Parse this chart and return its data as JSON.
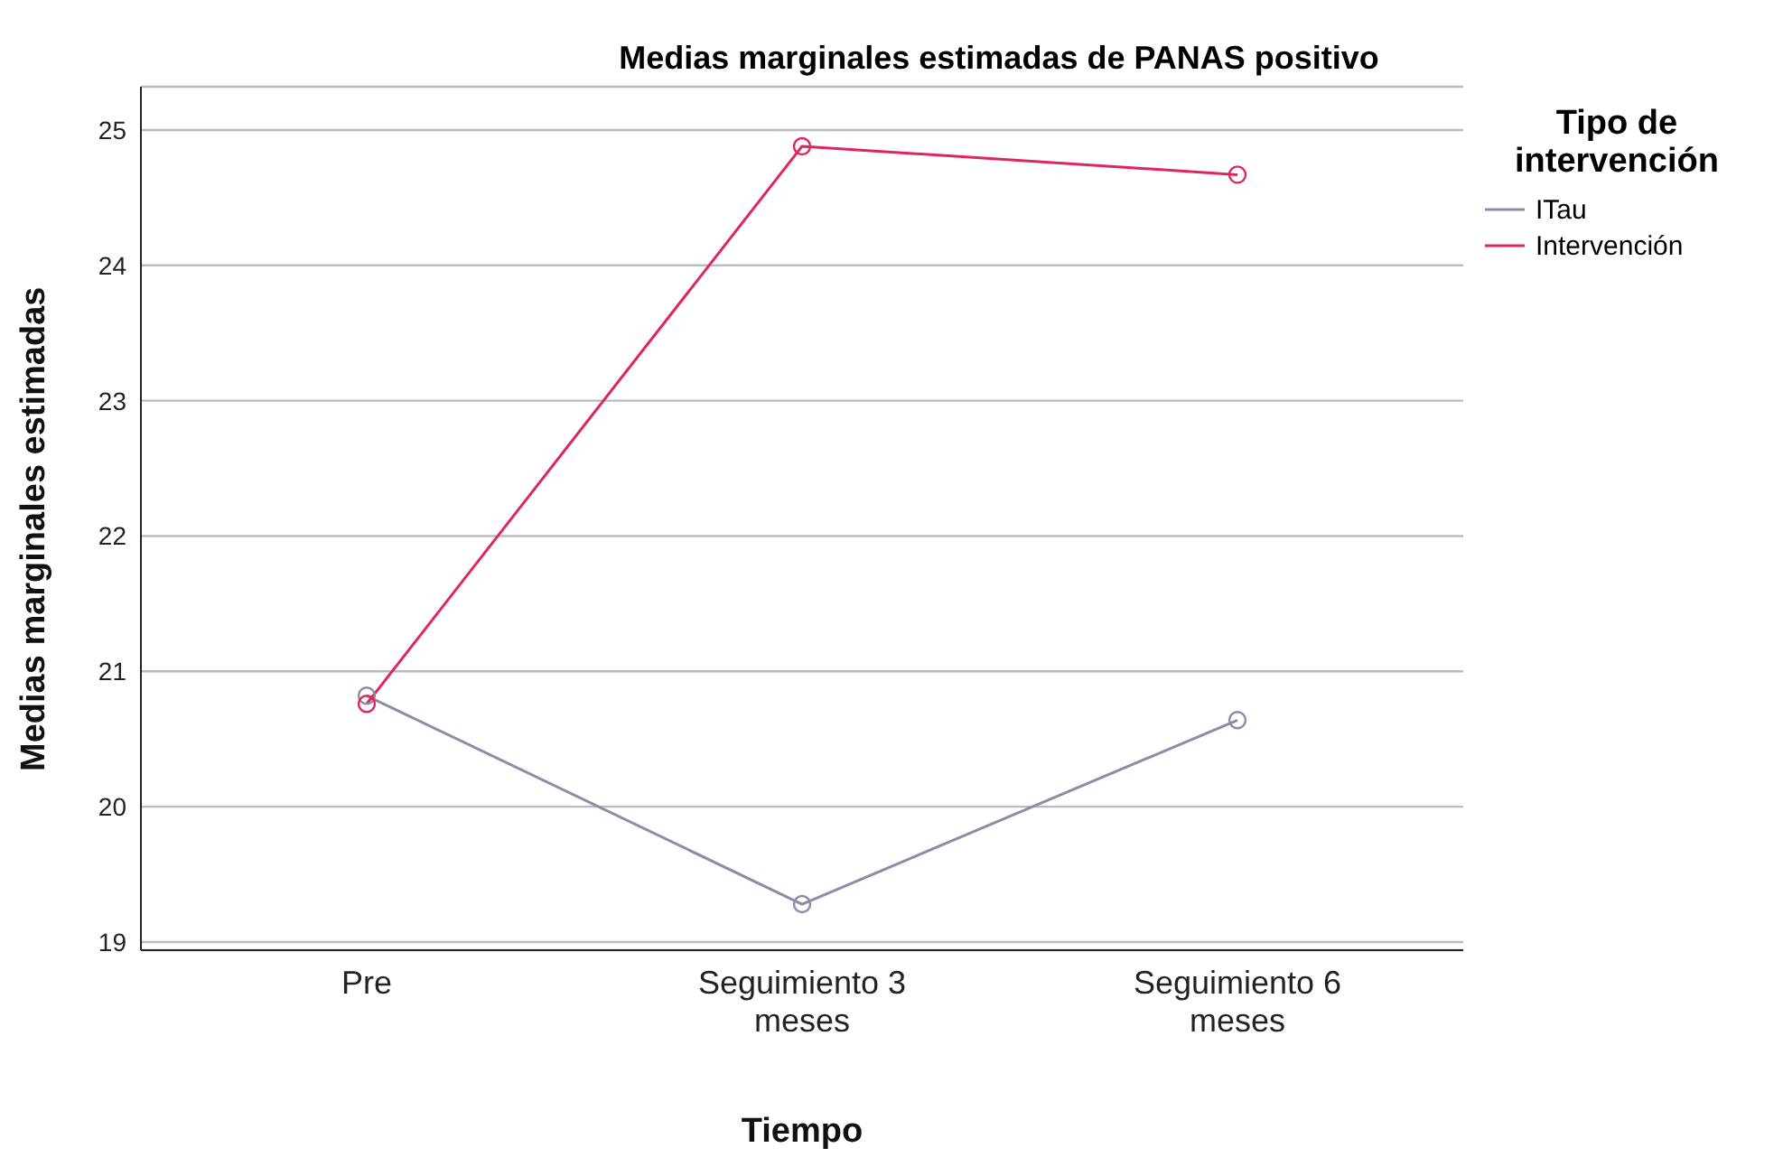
{
  "chart_data": {
    "type": "line",
    "title": "Medias marginales estimadas de PANAS positivo",
    "xlabel": "Tiempo",
    "ylabel": "Medias marginales estimadas",
    "legend_title": "Tipo de intervención",
    "categories": [
      "Pre",
      "Seguimiento 3 meses",
      "Seguimiento 6 meses"
    ],
    "series": [
      {
        "name": "ITau",
        "color": "#8c8ca6",
        "values": [
          20.82,
          19.28,
          20.64
        ]
      },
      {
        "name": "Intervención",
        "color": "#e0245e",
        "values": [
          20.76,
          24.88,
          24.67
        ]
      }
    ],
    "ylim": [
      18.94,
      25.32
    ],
    "yticks": [
      19,
      20,
      21,
      22,
      23,
      24,
      25
    ],
    "grid": "y",
    "legend": "top right",
    "marker": "circle",
    "line_style": "solid"
  }
}
